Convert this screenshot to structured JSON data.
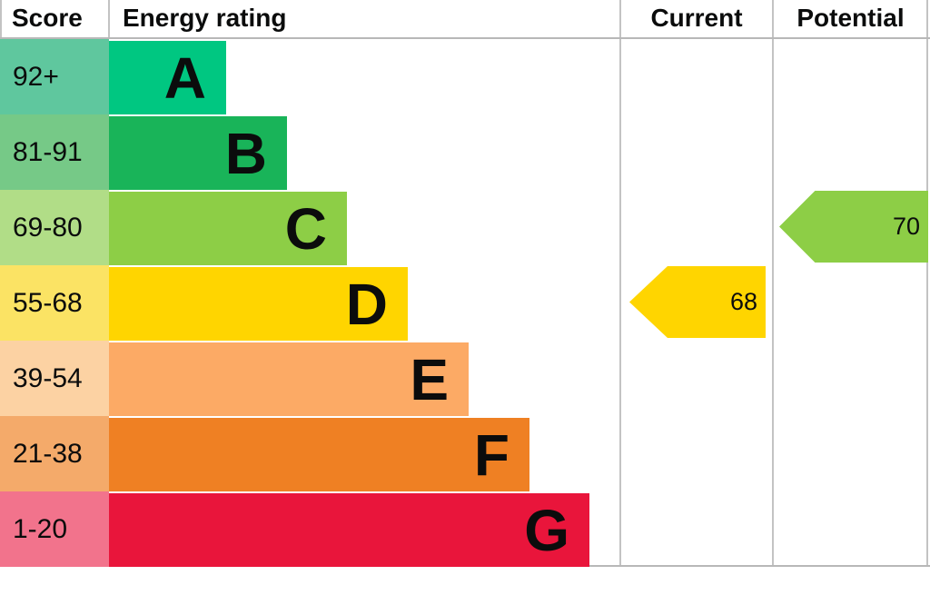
{
  "header": {
    "score": "Score",
    "energy_rating": "Energy rating",
    "current": "Current",
    "potential": "Potential"
  },
  "bands": [
    {
      "score": "92+",
      "letter": "A",
      "bar_color": "#00c781",
      "score_color": "#5fc79e"
    },
    {
      "score": "81-91",
      "letter": "B",
      "bar_color": "#19b459",
      "score_color": "#76c987"
    },
    {
      "score": "69-80",
      "letter": "C",
      "bar_color": "#8dce46",
      "score_color": "#b1dd87"
    },
    {
      "score": "55-68",
      "letter": "D",
      "bar_color": "#ffd500",
      "score_color": "#fbe364"
    },
    {
      "score": "39-54",
      "letter": "E",
      "bar_color": "#fcaa65",
      "score_color": "#fcd2a3"
    },
    {
      "score": "21-38",
      "letter": "F",
      "bar_color": "#ef8023",
      "score_color": "#f4aa6a"
    },
    {
      "score": "1-20",
      "letter": "G",
      "bar_color": "#e9153b",
      "score_color": "#f2738c"
    }
  ],
  "current": {
    "value": "68",
    "band_index": 3,
    "color": "#ffd500"
  },
  "potential": {
    "value": "70",
    "band_index": 2,
    "color": "#8dce46"
  },
  "chart_data": {
    "type": "bar",
    "orientation": "horizontal",
    "title": "Energy rating",
    "column_headers": [
      "Score",
      "Energy rating",
      "Current",
      "Potential"
    ],
    "bands": [
      {
        "letter": "A",
        "score_range": "92+"
      },
      {
        "letter": "B",
        "score_range": "81-91"
      },
      {
        "letter": "C",
        "score_range": "69-80"
      },
      {
        "letter": "D",
        "score_range": "55-68"
      },
      {
        "letter": "E",
        "score_range": "39-54"
      },
      {
        "letter": "F",
        "score_range": "21-38"
      },
      {
        "letter": "G",
        "score_range": "1-20"
      }
    ],
    "markers": [
      {
        "name": "Current",
        "value": 68,
        "band": "D",
        "color": "#ffd500"
      },
      {
        "name": "Potential",
        "value": 70,
        "band": "C",
        "color": "#8dce46"
      }
    ],
    "legend_position": "none",
    "grid": false
  }
}
